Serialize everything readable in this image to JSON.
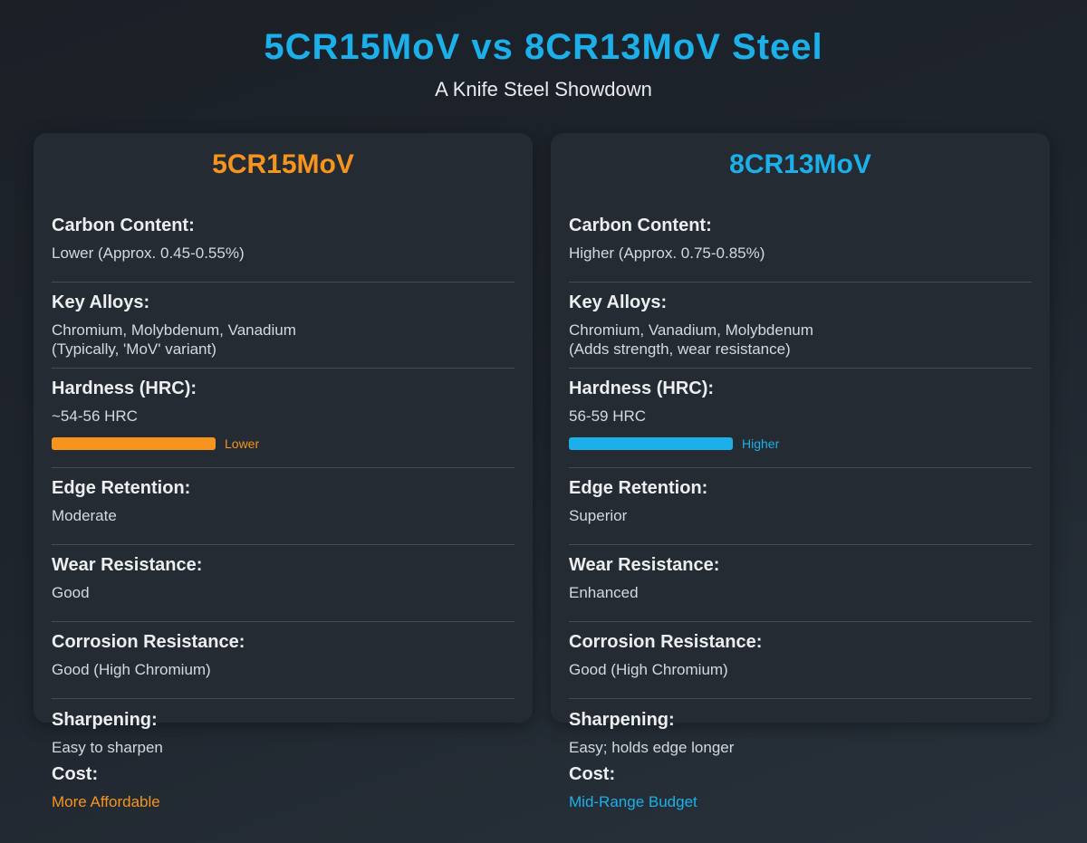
{
  "header": {
    "title": "5CR15MoV vs 8CR13MoV Steel",
    "subtitle": "A Knife Steel Showdown"
  },
  "colors": {
    "accent_blue": "#1cb0ea",
    "accent_orange": "#f7941d",
    "card_bg": "#252b33",
    "page_bg": "#1f252d"
  },
  "steels": [
    {
      "name": "5CR15MoV",
      "carbon_label": "Carbon Content:",
      "carbon_value": "Lower (Approx. 0.45-0.55%)",
      "alloys_label": "Key Alloys:",
      "alloys_line1": "Chromium, Molybdenum, Vanadium",
      "alloys_line2": "(Typically, 'MoV' variant)",
      "hardness_label": "Hardness (HRC):",
      "hardness_value": "~54-56 HRC",
      "hardness_bar_label": "Lower",
      "edge_label": "Edge Retention:",
      "edge_value": "Moderate",
      "wear_label": "Wear Resistance:",
      "wear_value": "Good",
      "corrosion_label": "Corrosion Resistance:",
      "corrosion_value": "Good (High Chromium)",
      "sharpening_label": "Sharpening:",
      "sharpening_value": "Easy to sharpen",
      "cost_label": "Cost:",
      "cost_value": "More Affordable"
    },
    {
      "name": "8CR13MoV",
      "carbon_label": "Carbon Content:",
      "carbon_value": "Higher (Approx. 0.75-0.85%)",
      "alloys_label": "Key Alloys:",
      "alloys_line1": "Chromium, Vanadium, Molybdenum",
      "alloys_line2": "(Adds strength, wear resistance)",
      "hardness_label": "Hardness (HRC):",
      "hardness_value": "56-59 HRC",
      "hardness_bar_label": "Higher",
      "edge_label": "Edge Retention:",
      "edge_value": "Superior",
      "wear_label": "Wear Resistance:",
      "wear_value": "Enhanced",
      "corrosion_label": "Corrosion Resistance:",
      "corrosion_value": "Good (High Chromium)",
      "sharpening_label": "Sharpening:",
      "sharpening_value": "Easy; holds edge longer",
      "cost_label": "Cost:",
      "cost_value": "Mid-Range Budget"
    }
  ]
}
